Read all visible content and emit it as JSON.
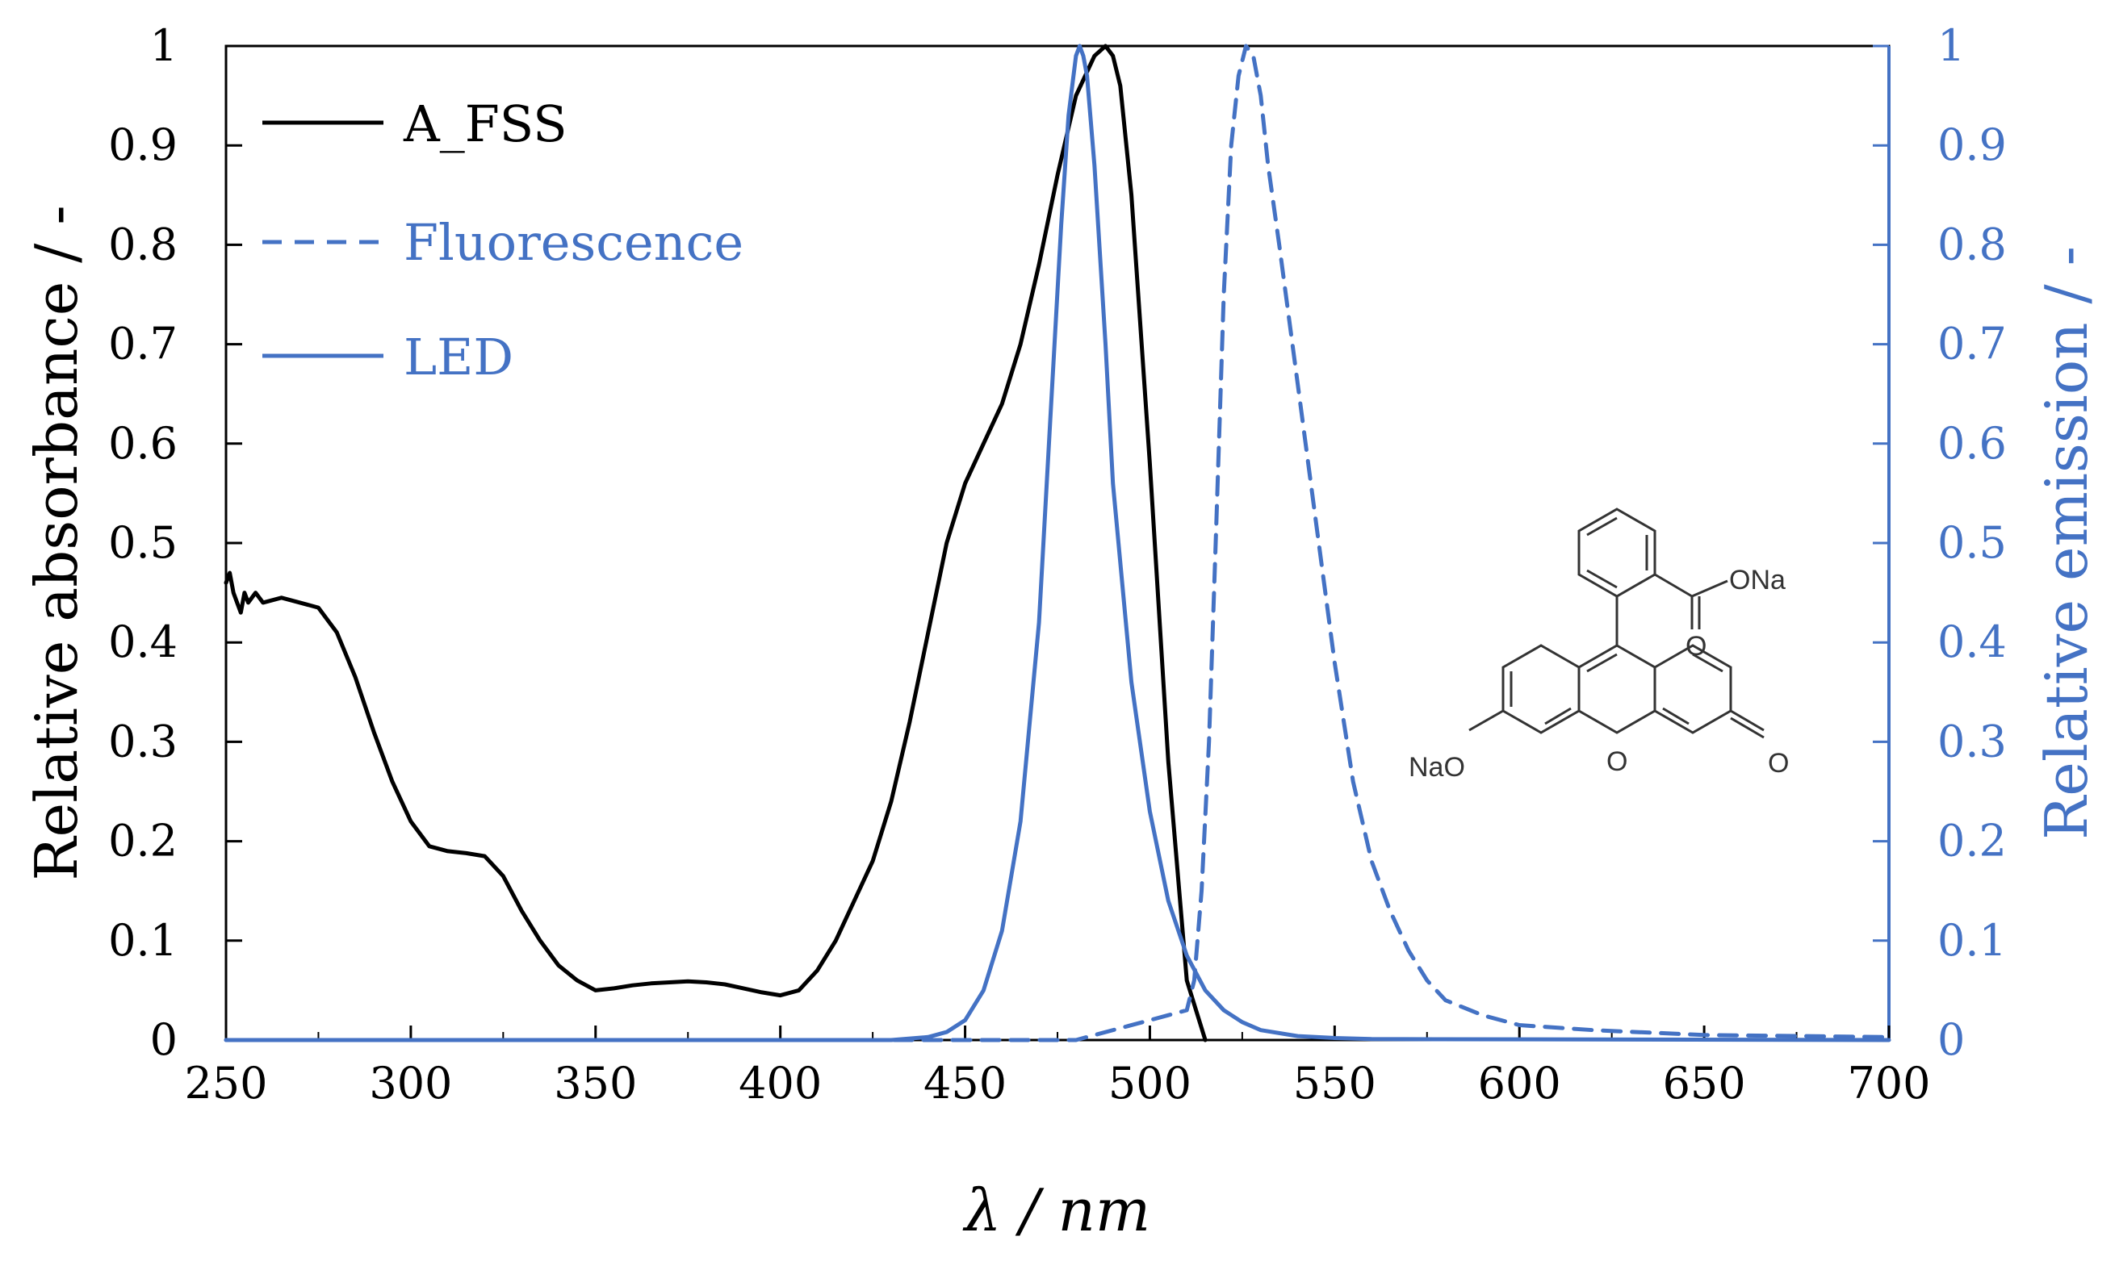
{
  "chart_data": {
    "type": "line",
    "xlabel": "λ / nm",
    "ylabel_left": "Relative absorbance / -",
    "ylabel_right": "Relative emission / -",
    "xlim": [
      250,
      700
    ],
    "ylim_left": [
      0,
      1
    ],
    "ylim_right": [
      0,
      1
    ],
    "x_ticks": [
      "250",
      "300",
      "350",
      "400",
      "450",
      "500",
      "550",
      "600",
      "650",
      "700"
    ],
    "y_ticks_left": [
      "0",
      "0.1",
      "0.2",
      "0.3",
      "0.4",
      "0.5",
      "0.6",
      "0.7",
      "0.8",
      "0.9",
      "1"
    ],
    "y_ticks_right": [
      "0",
      "0.1",
      "0.2",
      "0.3",
      "0.4",
      "0.5",
      "0.6",
      "0.7",
      "0.8",
      "0.9",
      "1"
    ],
    "legend_position": "top-left",
    "grid": false,
    "series": [
      {
        "name": "A_FSS",
        "color": "#000000",
        "dash": "solid",
        "axis": "left",
        "x": [
          250,
          251,
          252,
          253,
          254,
          255,
          256,
          258,
          260,
          265,
          270,
          275,
          280,
          285,
          290,
          295,
          300,
          305,
          310,
          315,
          320,
          325,
          330,
          335,
          340,
          345,
          350,
          355,
          360,
          365,
          370,
          375,
          380,
          385,
          390,
          395,
          400,
          405,
          410,
          415,
          420,
          425,
          430,
          435,
          440,
          445,
          450,
          455,
          460,
          465,
          470,
          475,
          480,
          485,
          488,
          490,
          492,
          495,
          500,
          505,
          510,
          515
        ],
        "y": [
          0.46,
          0.47,
          0.45,
          0.44,
          0.43,
          0.45,
          0.44,
          0.45,
          0.44,
          0.445,
          0.44,
          0.435,
          0.41,
          0.365,
          0.31,
          0.26,
          0.22,
          0.195,
          0.19,
          0.188,
          0.185,
          0.165,
          0.13,
          0.1,
          0.075,
          0.06,
          0.05,
          0.052,
          0.055,
          0.057,
          0.058,
          0.059,
          0.058,
          0.056,
          0.052,
          0.048,
          0.045,
          0.05,
          0.07,
          0.1,
          0.14,
          0.18,
          0.24,
          0.32,
          0.41,
          0.5,
          0.56,
          0.6,
          0.64,
          0.7,
          0.78,
          0.87,
          0.95,
          0.99,
          1.0,
          0.99,
          0.96,
          0.85,
          0.58,
          0.28,
          0.06,
          0.0
        ]
      },
      {
        "name": "Fluorescence",
        "color": "#4472c4",
        "dash": "dashed",
        "axis": "right",
        "x": [
          250,
          300,
          350,
          400,
          450,
          480,
          500,
          505,
          510,
          512,
          514,
          516,
          518,
          520,
          522,
          524,
          526,
          528,
          530,
          532,
          535,
          540,
          545,
          550,
          555,
          560,
          565,
          570,
          575,
          580,
          590,
          600,
          620,
          650,
          700
        ],
        "y": [
          0.0,
          0.0,
          0.0,
          0.0,
          0.0,
          0.0,
          0.02,
          0.025,
          0.03,
          0.06,
          0.15,
          0.3,
          0.52,
          0.75,
          0.9,
          0.97,
          1.0,
          0.99,
          0.95,
          0.88,
          0.8,
          0.66,
          0.52,
          0.38,
          0.26,
          0.18,
          0.13,
          0.09,
          0.06,
          0.04,
          0.025,
          0.015,
          0.01,
          0.005,
          0.003
        ]
      },
      {
        "name": "LED",
        "color": "#4472c4",
        "dash": "solid",
        "axis": "right",
        "x": [
          250,
          400,
          430,
          440,
          445,
          450,
          455,
          460,
          465,
          470,
          473,
          476,
          478,
          480,
          481,
          482,
          483,
          485,
          488,
          490,
          495,
          500,
          505,
          510,
          515,
          520,
          525,
          530,
          540,
          550,
          560,
          700
        ],
        "y": [
          0.0,
          0.0,
          0.0,
          0.003,
          0.008,
          0.02,
          0.05,
          0.11,
          0.22,
          0.42,
          0.62,
          0.82,
          0.93,
          0.99,
          1.0,
          0.99,
          0.97,
          0.88,
          0.7,
          0.56,
          0.36,
          0.23,
          0.14,
          0.085,
          0.05,
          0.03,
          0.018,
          0.01,
          0.004,
          0.002,
          0.001,
          0.0
        ]
      }
    ],
    "annotation": {
      "substituents": [
        "ONa",
        "O",
        "NaO",
        "O",
        "O"
      ]
    }
  }
}
